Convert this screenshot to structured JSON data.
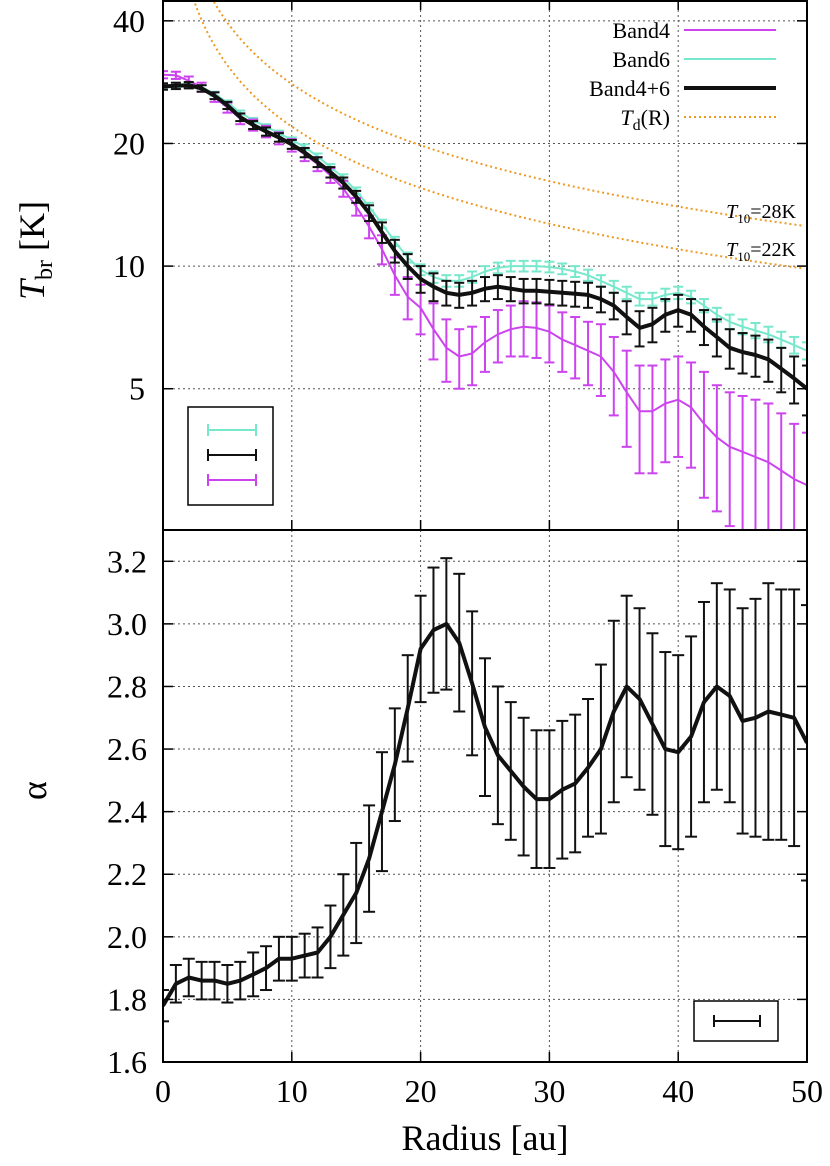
{
  "chart_data": [
    {
      "type": "line",
      "panel": "top",
      "xlabel": "Radius [au]",
      "ylabel_main": "T",
      "ylabel_sub": "br",
      "ylabel_unit": " [K]",
      "yscale": "log",
      "xlim": [
        0,
        50
      ],
      "ylim": [
        2.25,
        45
      ],
      "yticks": [
        5,
        10,
        20,
        40
      ],
      "ytick_labels": [
        "5",
        "10",
        "20",
        "40"
      ],
      "xticks": [
        0,
        10,
        20,
        30,
        40,
        50
      ],
      "grid": true,
      "legend_position": "top-right",
      "series": [
        {
          "name": "Band4",
          "color": "#cc44ee",
          "x": [
            0,
            1,
            2,
            3,
            4,
            5,
            6,
            7,
            8,
            9,
            10,
            11,
            12,
            13,
            14,
            15,
            16,
            17,
            18,
            19,
            20,
            21,
            22,
            23,
            24,
            25,
            26,
            27,
            28,
            29,
            30,
            31,
            32,
            33,
            34,
            35,
            36,
            37,
            38,
            39,
            40,
            41,
            42,
            43,
            44,
            45,
            46,
            47,
            48,
            49,
            50
          ],
          "y": [
            29.5,
            29.4,
            28.5,
            27.5,
            26,
            24.5,
            23,
            22.2,
            21.4,
            20.6,
            19.8,
            18.8,
            17.8,
            16.7,
            15.5,
            14,
            12.5,
            11,
            9.5,
            8.4,
            7.9,
            7.0,
            6.3,
            6.0,
            6.1,
            6.5,
            6.8,
            7.0,
            7.1,
            7.05,
            6.9,
            6.6,
            6.4,
            6.2,
            6.0,
            5.5,
            4.9,
            4.4,
            4.4,
            4.6,
            4.7,
            4.5,
            4.1,
            3.8,
            3.6,
            3.5,
            3.4,
            3.3,
            3.15,
            3.0,
            2.9
          ],
          "err": [
            0.6,
            0.6,
            0.7,
            0.7,
            0.7,
            0.7,
            0.7,
            0.7,
            0.7,
            0.7,
            0.7,
            0.7,
            0.7,
            0.7,
            0.7,
            0.7,
            0.8,
            0.9,
            1.0,
            1.0,
            1.1,
            1.1,
            1.1,
            1.0,
            1.0,
            1.0,
            1.0,
            1.0,
            1.1,
            1.1,
            1.1,
            1.1,
            1.1,
            1.1,
            1.2,
            1.2,
            1.3,
            1.3,
            1.3,
            1.3,
            1.3,
            1.3,
            1.4,
            1.3,
            1.3,
            1.3,
            1.3,
            1.3,
            1.2,
            1.1,
            1.0
          ]
        },
        {
          "name": "Band6",
          "color": "#77e8cc",
          "x": [
            0,
            1,
            2,
            3,
            4,
            5,
            6,
            7,
            8,
            9,
            10,
            11,
            12,
            13,
            14,
            15,
            16,
            17,
            18,
            19,
            20,
            21,
            22,
            23,
            24,
            25,
            26,
            27,
            28,
            29,
            30,
            31,
            32,
            33,
            34,
            35,
            36,
            37,
            38,
            39,
            40,
            41,
            42,
            43,
            44,
            45,
            46,
            47,
            48,
            49,
            50
          ],
          "y": [
            27.5,
            27.6,
            27.8,
            27.5,
            26.5,
            25.2,
            23.8,
            22.8,
            22,
            21.2,
            20.4,
            19.6,
            18.6,
            17.5,
            16.5,
            15.3,
            14.0,
            12.7,
            11.5,
            10.5,
            9.8,
            9.4,
            9.2,
            9.2,
            9.4,
            9.7,
            9.9,
            10.0,
            10.0,
            10.0,
            9.95,
            9.85,
            9.7,
            9.5,
            9.2,
            8.9,
            8.6,
            8.3,
            8.3,
            8.5,
            8.6,
            8.4,
            8.0,
            7.6,
            7.3,
            7.1,
            6.95,
            6.8,
            6.6,
            6.4,
            6.2
          ],
          "err": [
            0.3,
            0.3,
            0.3,
            0.3,
            0.3,
            0.3,
            0.3,
            0.3,
            0.3,
            0.3,
            0.3,
            0.3,
            0.3,
            0.3,
            0.3,
            0.3,
            0.3,
            0.3,
            0.3,
            0.3,
            0.3,
            0.3,
            0.3,
            0.3,
            0.3,
            0.3,
            0.3,
            0.3,
            0.3,
            0.3,
            0.3,
            0.3,
            0.3,
            0.3,
            0.3,
            0.3,
            0.3,
            0.3,
            0.3,
            0.3,
            0.3,
            0.3,
            0.3,
            0.3,
            0.3,
            0.3,
            0.3,
            0.3,
            0.3,
            0.3,
            0.3
          ]
        },
        {
          "name": "Band4+6",
          "color": "#111111",
          "x": [
            0,
            1,
            2,
            3,
            4,
            5,
            6,
            7,
            8,
            9,
            10,
            11,
            12,
            13,
            14,
            15,
            16,
            17,
            18,
            19,
            20,
            21,
            22,
            23,
            24,
            25,
            26,
            27,
            28,
            29,
            30,
            31,
            32,
            33,
            34,
            35,
            36,
            37,
            38,
            39,
            40,
            41,
            42,
            43,
            44,
            45,
            46,
            47,
            48,
            49,
            50
          ],
          "y": [
            27.6,
            27.7,
            27.8,
            27.3,
            26.2,
            24.8,
            23.2,
            22.2,
            21.4,
            20.7,
            19.9,
            19.0,
            18.0,
            17.0,
            16.0,
            14.8,
            13.5,
            12.1,
            10.9,
            10.0,
            9.3,
            8.9,
            8.6,
            8.5,
            8.6,
            8.8,
            8.9,
            8.8,
            8.7,
            8.7,
            8.65,
            8.6,
            8.55,
            8.5,
            8.3,
            8.0,
            7.5,
            7.05,
            7.2,
            7.6,
            7.8,
            7.6,
            7.1,
            6.7,
            6.3,
            6.15,
            6.05,
            5.9,
            5.6,
            5.3,
            5.0
          ],
          "err": [
            0.5,
            0.5,
            0.5,
            0.5,
            0.5,
            0.5,
            0.5,
            0.5,
            0.5,
            0.5,
            0.5,
            0.5,
            0.5,
            0.5,
            0.5,
            0.5,
            0.6,
            0.7,
            0.7,
            0.7,
            0.7,
            0.7,
            0.6,
            0.6,
            0.6,
            0.6,
            0.6,
            0.6,
            0.6,
            0.6,
            0.6,
            0.6,
            0.6,
            0.6,
            0.6,
            0.6,
            0.7,
            0.7,
            0.7,
            0.7,
            0.7,
            0.7,
            0.7,
            0.7,
            0.7,
            0.7,
            0.7,
            0.7,
            0.7,
            0.7,
            0.7
          ]
        },
        {
          "name": "Td(R)",
          "legend_main": "T",
          "legend_sub": "d",
          "legend_suffix": "(R)",
          "color": "#ee9922",
          "style": "dotted",
          "curves": [
            {
              "T10": 28,
              "label_main": "T",
              "label_sub": "10",
              "label_value": "=28K"
            },
            {
              "T10": 22,
              "label_main": "T",
              "label_sub": "10",
              "label_value": "=22K"
            }
          ],
          "power_index": -0.5
        }
      ],
      "error_bar_legend": [
        "Band6",
        "Band4+6",
        "Band4"
      ]
    },
    {
      "type": "line",
      "panel": "bottom",
      "xlabel": "Radius [au]",
      "ylabel": "α",
      "xlim": [
        0,
        50
      ],
      "ylim": [
        1.6,
        3.3
      ],
      "yticks": [
        1.6,
        1.8,
        2.0,
        2.2,
        2.4,
        2.6,
        2.8,
        3.0,
        3.2
      ],
      "ytick_labels": [
        "1.6",
        "1.8",
        "2.0",
        "2.2",
        "2.4",
        "2.6",
        "2.8",
        "3.0",
        "3.2"
      ],
      "xticks": [
        0,
        10,
        20,
        30,
        40,
        50
      ],
      "xtick_labels": [
        "0",
        "10",
        "20",
        "30",
        "40",
        "50"
      ],
      "grid": true,
      "series": [
        {
          "name": "alpha",
          "color": "#111111",
          "x": [
            0,
            1,
            2,
            3,
            4,
            5,
            6,
            7,
            8,
            9,
            10,
            11,
            12,
            13,
            14,
            15,
            16,
            17,
            18,
            19,
            20,
            21,
            22,
            23,
            24,
            25,
            26,
            27,
            28,
            29,
            30,
            31,
            32,
            33,
            34,
            35,
            36,
            37,
            38,
            39,
            40,
            41,
            42,
            43,
            44,
            45,
            46,
            47,
            48,
            49,
            50
          ],
          "y": [
            1.78,
            1.85,
            1.87,
            1.86,
            1.86,
            1.85,
            1.86,
            1.88,
            1.9,
            1.93,
            1.93,
            1.94,
            1.95,
            2.0,
            2.07,
            2.14,
            2.25,
            2.4,
            2.55,
            2.73,
            2.92,
            2.98,
            3.0,
            2.94,
            2.81,
            2.67,
            2.58,
            2.53,
            2.48,
            2.44,
            2.44,
            2.47,
            2.49,
            2.54,
            2.6,
            2.72,
            2.8,
            2.76,
            2.68,
            2.6,
            2.59,
            2.64,
            2.75,
            2.8,
            2.77,
            2.69,
            2.7,
            2.72,
            2.71,
            2.7,
            2.62
          ],
          "err": [
            0.05,
            0.06,
            0.06,
            0.06,
            0.06,
            0.06,
            0.06,
            0.07,
            0.07,
            0.07,
            0.07,
            0.07,
            0.08,
            0.1,
            0.13,
            0.16,
            0.17,
            0.19,
            0.18,
            0.17,
            0.17,
            0.2,
            0.21,
            0.22,
            0.23,
            0.22,
            0.22,
            0.22,
            0.22,
            0.22,
            0.22,
            0.22,
            0.22,
            0.22,
            0.27,
            0.29,
            0.29,
            0.29,
            0.29,
            0.31,
            0.31,
            0.32,
            0.32,
            0.33,
            0.34,
            0.36,
            0.38,
            0.41,
            0.4,
            0.41,
            0.44
          ]
        }
      ],
      "error_bar_legend": [
        "alpha"
      ]
    }
  ]
}
